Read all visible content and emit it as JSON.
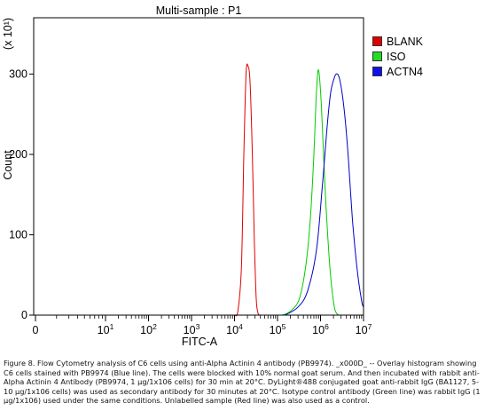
{
  "chart_data": {
    "type": "line",
    "title": "Multi-sample : P1",
    "xlabel": "FITC-A",
    "ylabel": "Count",
    "y_multiplier": "(x 10¹)",
    "x_scale": "log",
    "xlim": [
      0,
      10000000
    ],
    "ylim": [
      0,
      370
    ],
    "y_ticks": [
      0,
      100,
      200,
      300
    ],
    "x_tick_labels": [
      {
        "value": 0,
        "base": "0",
        "exp": ""
      },
      {
        "value": 10,
        "base": "10",
        "exp": "1"
      },
      {
        "value": 100,
        "base": "10",
        "exp": "2"
      },
      {
        "value": 1000,
        "base": "10",
        "exp": "3"
      },
      {
        "value": 10000,
        "base": "10",
        "exp": "4"
      },
      {
        "value": 100000,
        "base": "10",
        "exp": "5"
      },
      {
        "value": 1000000,
        "base": "10",
        "exp": "6"
      },
      {
        "value": 10000000,
        "base": "10",
        "exp": "7"
      }
    ],
    "legend_position": "right",
    "series": [
      {
        "name": "BLANK",
        "color": "#e00000",
        "fill": "#e00000",
        "x": [
          10000,
          12000,
          14500,
          16500,
          18500,
          20500,
          23000,
          26000,
          29000,
          32000,
          35000,
          38000
        ],
        "y": [
          0,
          5,
          60,
          200,
          300,
          310,
          290,
          200,
          90,
          20,
          3,
          0
        ]
      },
      {
        "name": "ISO",
        "color": "#00cc00",
        "fill": "#22dd22",
        "x": [
          130000,
          200000,
          320000,
          450000,
          580000,
          700000,
          800000,
          900000,
          1050000,
          1300000,
          1650000,
          2100000,
          2600000
        ],
        "y": [
          0,
          5,
          20,
          60,
          120,
          200,
          275,
          305,
          260,
          150,
          60,
          10,
          0
        ]
      },
      {
        "name": "ACTN4",
        "color": "#0000cc",
        "fill": "#1010ee",
        "x": [
          150000,
          300000,
          500000,
          800000,
          1100000,
          1400000,
          1700000,
          2000000,
          2300000,
          2700000,
          3200000,
          3800000,
          4500000,
          5500000,
          7000000,
          9000000,
          10000000
        ],
        "y": [
          0,
          10,
          30,
          80,
          160,
          230,
          275,
          292,
          300,
          296,
          275,
          240,
          190,
          120,
          60,
          18,
          10
        ]
      }
    ]
  },
  "caption": "Figure 8. Flow Cytometry analysis of C6 cells using anti-Alpha Actinin 4 antibody (PB9974). _x000D_ -- Overlay histogram showing C6 cells stained with PB9974 (Blue line). The cells were blocked with 10% normal goat serum. And then incubated with rabbit anti-Alpha Actinin 4 Antibody (PB9974, 1 µg/1x106 cells) for 30 min at 20°C. DyLight®488 conjugated goat anti-rabbit IgG (BA1127, 5-10 µg/1x106 cells) was used as secondary antibody for 30 minutes at 20°C. Isotype control antibody (Green line) was rabbit IgG (1 µg/1x106) used under the same conditions. Unlabelled sample (Red line) was also used as a control."
}
